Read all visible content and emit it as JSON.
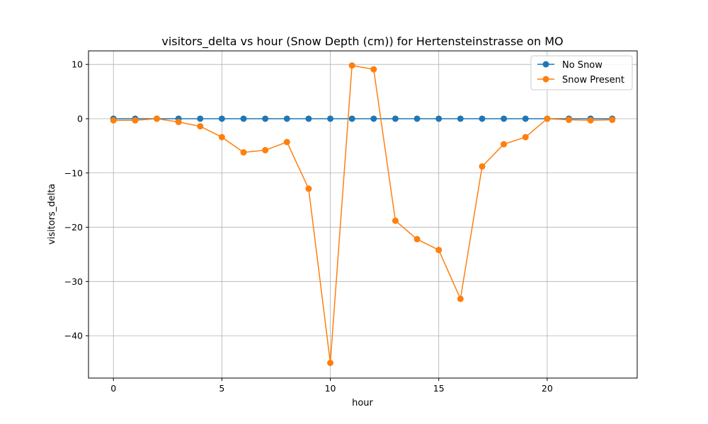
{
  "chart_data": {
    "type": "line",
    "title": "visitors_delta vs hour (Snow Depth (cm)) for Hertensteinstrasse on MO",
    "xlabel": "hour",
    "ylabel": "visitors_delta",
    "xlim": [
      -1.15,
      24.15
    ],
    "ylim": [
      -47.8,
      12.5
    ],
    "xticks": [
      0,
      5,
      10,
      15,
      20
    ],
    "yticks": [
      10,
      0,
      -10,
      -20,
      -30,
      -40
    ],
    "xtick_labels": [
      "0",
      "5",
      "10",
      "15",
      "20"
    ],
    "ytick_labels": [
      "10",
      "0",
      "−10",
      "−20",
      "−30",
      "−40"
    ],
    "grid": true,
    "legend_position": "top-right",
    "x": [
      0,
      1,
      2,
      3,
      4,
      5,
      6,
      7,
      8,
      9,
      10,
      11,
      12,
      13,
      14,
      15,
      16,
      17,
      18,
      19,
      20,
      21,
      22,
      23
    ],
    "series": [
      {
        "name": "No Snow",
        "color": "#1f77b4",
        "values": [
          0,
          0,
          0,
          0,
          0,
          0,
          0,
          0,
          0,
          0,
          0,
          0,
          0,
          0,
          0,
          0,
          0,
          0,
          0,
          0,
          0,
          0,
          0,
          0
        ]
      },
      {
        "name": "Snow Present",
        "color": "#ff7f0e",
        "values": [
          -0.3,
          -0.3,
          0.0,
          -0.6,
          -1.4,
          -3.4,
          -6.2,
          -5.8,
          -4.3,
          -12.9,
          -45.0,
          9.8,
          9.1,
          -18.8,
          -22.2,
          -24.2,
          -33.2,
          -8.8,
          -4.7,
          -3.4,
          0.0,
          -0.2,
          -0.3,
          -0.2
        ]
      }
    ]
  }
}
